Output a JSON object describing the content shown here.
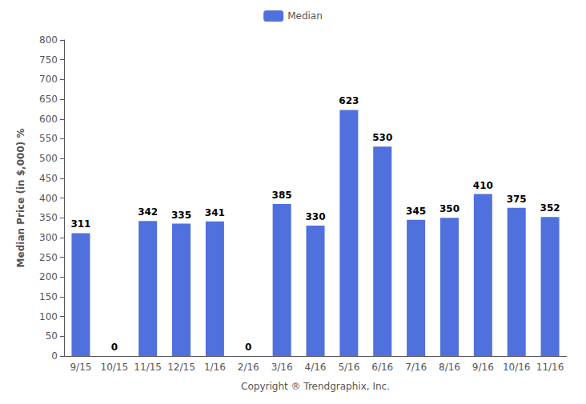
{
  "chart_data": {
    "type": "bar",
    "categories": [
      "9/15",
      "10/15",
      "11/15",
      "12/15",
      "1/16",
      "2/16",
      "3/16",
      "4/16",
      "5/16",
      "6/16",
      "7/16",
      "8/16",
      "9/16",
      "10/16",
      "11/16"
    ],
    "series": [
      {
        "name": "Median",
        "values": [
          311,
          0,
          342,
          335,
          341,
          0,
          385,
          330,
          623,
          530,
          345,
          350,
          410,
          375,
          352
        ]
      }
    ],
    "ylim": [
      0,
      800
    ],
    "yticks": [
      0,
      50,
      100,
      150,
      200,
      250,
      300,
      350,
      400,
      450,
      500,
      550,
      600,
      650,
      700,
      750,
      800
    ],
    "ylabel": "Median Price (in $,000) %",
    "xlabel": "Copyright ® Trendgraphix, Inc.",
    "grid": false,
    "legend": "top",
    "data_labels": true
  }
}
